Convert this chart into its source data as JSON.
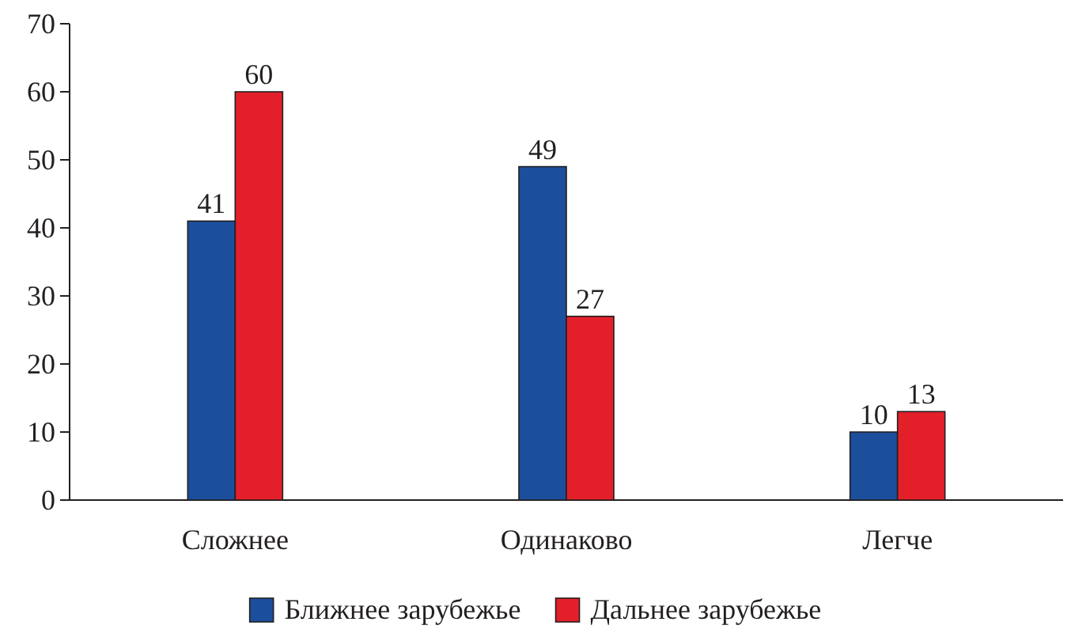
{
  "chart_data": {
    "type": "bar",
    "categories": [
      "Сложнее",
      "Одинаково",
      "Легче"
    ],
    "series": [
      {
        "name": "Ближнее зарубежье",
        "color": "#1b4f9c",
        "values": [
          41,
          49,
          10
        ]
      },
      {
        "name": "Дальнее зарубежье",
        "color": "#e3202a",
        "values": [
          60,
          27,
          13
        ]
      }
    ],
    "ylim": [
      0,
      70
    ],
    "yticks": [
      0,
      10,
      20,
      30,
      40,
      50,
      60,
      70
    ],
    "grid": false,
    "legend": "bottom",
    "data_labels": true
  }
}
